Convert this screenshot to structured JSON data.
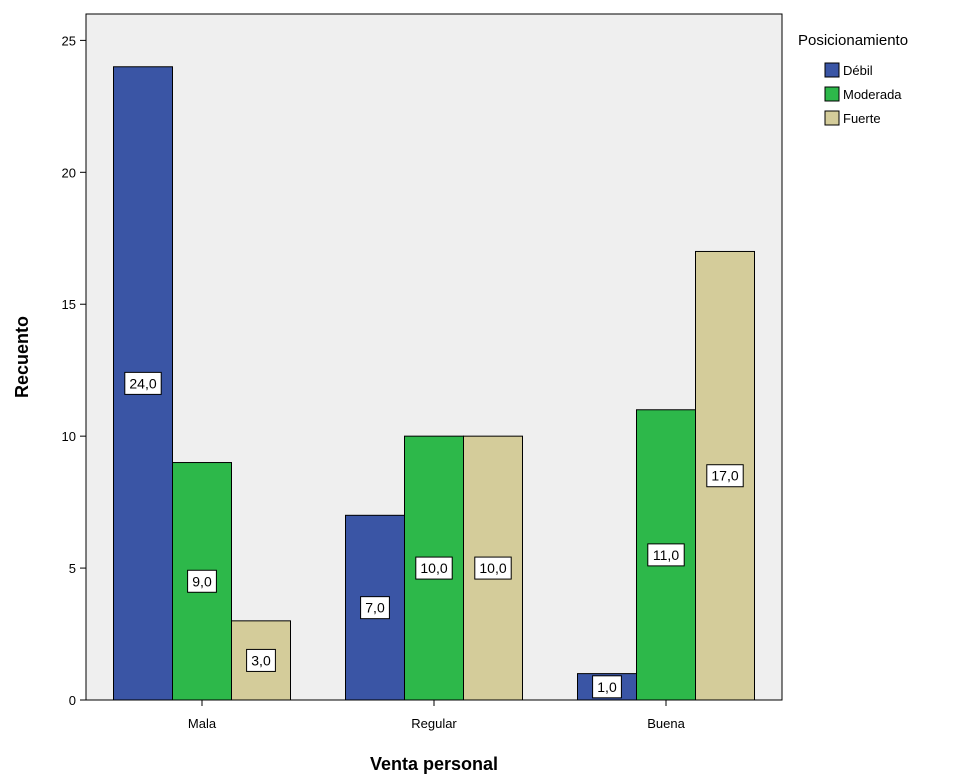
{
  "chart_data": {
    "type": "bar",
    "xlabel": "Venta personal",
    "ylabel": "Recuento",
    "categories": [
      "Mala",
      "Regular",
      "Buena"
    ],
    "ylim": [
      0,
      26
    ],
    "yticks": [
      0,
      5,
      10,
      15,
      20,
      25
    ],
    "grid": false,
    "legend": {
      "title": "Posicionamiento",
      "placement": "right-top"
    },
    "series": [
      {
        "name": "Débil",
        "color": "#3a55a5",
        "values": [
          24,
          7,
          1
        ],
        "labels": [
          "24,0",
          "7,0",
          "1,0"
        ]
      },
      {
        "name": "Moderada",
        "color": "#2db84a",
        "values": [
          9,
          10,
          11
        ],
        "labels": [
          "9,0",
          "10,0",
          "11,0"
        ]
      },
      {
        "name": "Fuerte",
        "color": "#d4cc9a",
        "values": [
          3,
          10,
          17
        ],
        "labels": [
          "3,0",
          "10,0",
          "17,0"
        ]
      }
    ],
    "plot_background": "#efefef"
  }
}
